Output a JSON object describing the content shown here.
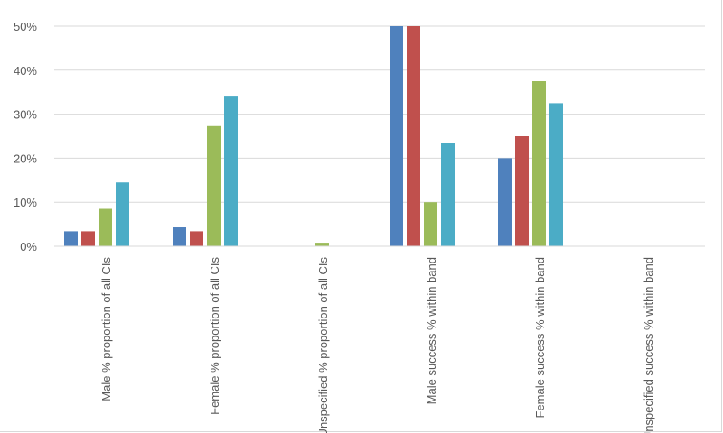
{
  "chart_data": {
    "type": "bar",
    "title": "",
    "xlabel": "",
    "ylabel": "",
    "ylim": [
      0,
      50
    ],
    "yticks": [
      "0%",
      "10%",
      "20%",
      "30%",
      "40%",
      "50%"
    ],
    "grid": true,
    "legend": "none",
    "categories": [
      "Male % proportion of all CIs",
      "Female % proportion of all CIs",
      "Unspecified % proportion of all CIs",
      "Male success % within band",
      "Female success % within band",
      "Unspecified success % within band"
    ],
    "series": [
      {
        "color": "#4f81bd",
        "values": [
          3.4,
          4.3,
          0,
          50,
          20,
          0
        ]
      },
      {
        "color": "#c0504d",
        "values": [
          3.4,
          3.4,
          0,
          50,
          25,
          0
        ]
      },
      {
        "color": "#9bbb59",
        "values": [
          8.5,
          27.3,
          0.8,
          10,
          37.5,
          0
        ]
      },
      {
        "color": "#4bacc6",
        "values": [
          14.5,
          34.2,
          0,
          23.5,
          32.5,
          0
        ]
      }
    ]
  }
}
